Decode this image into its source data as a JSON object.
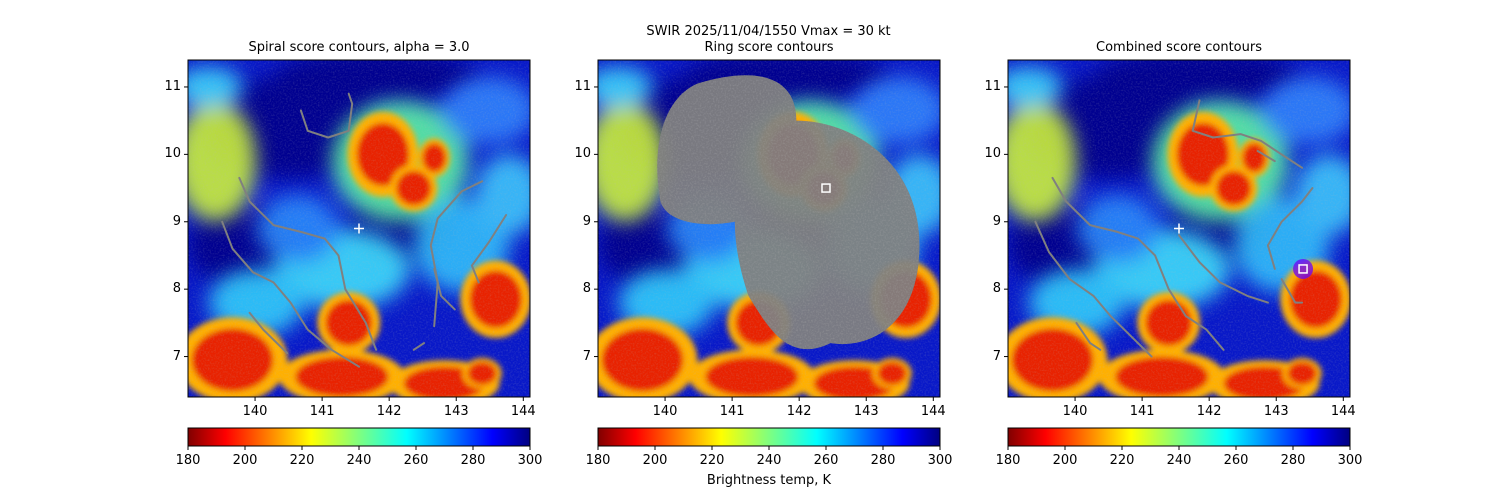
{
  "suptitle": {
    "line1": "SWIR  2025/11/04/1550    Vmax = 30 kt"
  },
  "panels": [
    {
      "title": "Spiral score contours, alpha =  3.0"
    },
    {
      "title": "Ring score contours"
    },
    {
      "title": "Combined score contours"
    }
  ],
  "colorbar": {
    "label": "Brightness temp, K",
    "ticks": [
      "180",
      "200",
      "220",
      "240",
      "260",
      "280",
      "300"
    ],
    "colormap": "jet_r"
  },
  "colors": {
    "contour": "#808080",
    "marker": "#ffffff",
    "highlight": "#6a00ff"
  },
  "chart_data": [
    {
      "type": "heatmap",
      "title": "Spiral score contours, alpha =  3.0",
      "xlim": [
        139.0,
        144.1
      ],
      "ylim": [
        6.4,
        11.4
      ],
      "xticks": [
        140,
        141,
        142,
        143,
        144
      ],
      "yticks": [
        7,
        8,
        9,
        10,
        11
      ],
      "colorbar_range": [
        180,
        300
      ],
      "center_marker": {
        "symbol": "+",
        "x": 141.55,
        "y": 8.9
      },
      "grid": false
    },
    {
      "type": "heatmap",
      "title": "Ring score contours",
      "xlim": [
        139.0,
        144.1
      ],
      "ylim": [
        6.4,
        11.4
      ],
      "xticks": [
        140,
        141,
        142,
        143,
        144
      ],
      "yticks": [
        7,
        8,
        9,
        10,
        11
      ],
      "colorbar_range": [
        180,
        300
      ],
      "center_marker": {
        "symbol": "square",
        "x": 142.4,
        "y": 9.5
      },
      "grid": false
    },
    {
      "type": "heatmap",
      "title": "Combined score contours",
      "xlim": [
        139.0,
        144.1
      ],
      "ylim": [
        6.4,
        11.4
      ],
      "xticks": [
        140,
        141,
        142,
        143,
        144
      ],
      "yticks": [
        7,
        8,
        9,
        10,
        11
      ],
      "colorbar_range": [
        180,
        300
      ],
      "center_marker": {
        "symbol": "+",
        "x": 141.55,
        "y": 8.9
      },
      "best_marker": {
        "symbol": "square",
        "x": 143.4,
        "y": 8.3
      },
      "grid": false
    }
  ]
}
